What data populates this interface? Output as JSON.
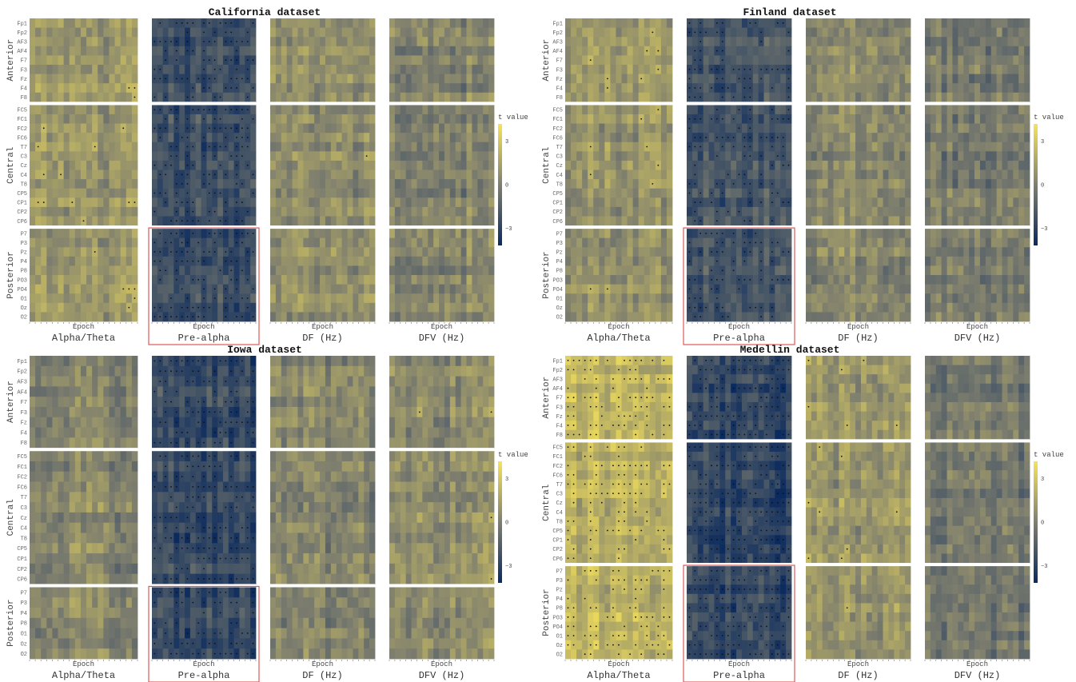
{
  "chart_data": [
    {
      "type": "heatmap",
      "title": "California dataset",
      "panels": [
        "Alpha/Theta",
        "Pre-alpha",
        "DF (Hz)",
        "DFV (Hz)"
      ],
      "panel_xlabel": "Epoch",
      "highlighted_panel": "Pre-alpha",
      "region_groups": [
        {
          "name": "Anterior",
          "channels": [
            "Fp1",
            "Fp2",
            "AF3",
            "AF4",
            "F7",
            "F3",
            "Fz",
            "F4",
            "F8"
          ]
        },
        {
          "name": "Central",
          "channels": [
            "FC5",
            "FC1",
            "FC2",
            "FC6",
            "T7",
            "C3",
            "Cz",
            "C4",
            "T8",
            "CP5",
            "CP1",
            "CP2",
            "CP6"
          ]
        },
        {
          "name": "Posterior",
          "channels": [
            "P7",
            "P3",
            "Pz",
            "P4",
            "P8",
            "PO3",
            "PO4",
            "O1",
            "Oz",
            "O2"
          ]
        }
      ],
      "panel_mean_t": [
        0.9,
        -2.4,
        0.4,
        0.2
      ],
      "legend": {
        "title": "t value",
        "ticks": [
          3,
          0,
          -3
        ]
      }
    },
    {
      "type": "heatmap",
      "title": "Finland dataset",
      "panels": [
        "Alpha/Theta",
        "Pre-alpha",
        "DF (Hz)",
        "DFV (Hz)"
      ],
      "panel_xlabel": "Epoch",
      "highlighted_panel": "Pre-alpha",
      "region_groups": [
        {
          "name": "Anterior",
          "channels": [
            "Fp1",
            "Fp2",
            "AF3",
            "AF4",
            "F7",
            "F3",
            "Fz",
            "F4",
            "F8"
          ]
        },
        {
          "name": "Central",
          "channels": [
            "FC5",
            "FC1",
            "FC2",
            "FC6",
            "T7",
            "C3",
            "Cz",
            "C4",
            "T8",
            "CP5",
            "CP1",
            "CP2",
            "CP6"
          ]
        },
        {
          "name": "Posterior",
          "channels": [
            "P7",
            "P3",
            "Pz",
            "P4",
            "P8",
            "PO3",
            "PO4",
            "O1",
            "Oz",
            "O2"
          ]
        }
      ],
      "panel_mean_t": [
        0.9,
        -2.0,
        0.4,
        -0.2
      ],
      "legend": {
        "title": "t value",
        "ticks": [
          3,
          0,
          -3
        ]
      }
    },
    {
      "type": "heatmap",
      "title": "Iowa dataset",
      "panels": [
        "Alpha/Theta",
        "Pre-alpha",
        "DF (Hz)",
        "DFV (Hz)"
      ],
      "panel_xlabel": "Epoch",
      "highlighted_panel": "Pre-alpha",
      "region_groups": [
        {
          "name": "Anterior",
          "channels": [
            "Fp1",
            "Fp2",
            "AF3",
            "AF4",
            "F7",
            "F3",
            "Fz",
            "F4",
            "F8"
          ]
        },
        {
          "name": "Central",
          "channels": [
            "FC5",
            "FC1",
            "FC2",
            "FC6",
            "T7",
            "C3",
            "Cz",
            "C4",
            "T8",
            "CP5",
            "CP1",
            "CP2",
            "CP6"
          ]
        },
        {
          "name": "Posterior",
          "channels": [
            "P7",
            "P3",
            "P4",
            "P8",
            "O1",
            "Oz",
            "O2"
          ]
        }
      ],
      "panel_mean_t": [
        0.3,
        -2.6,
        0.3,
        0.6
      ],
      "legend": {
        "title": "t value",
        "ticks": [
          3,
          0,
          -3
        ]
      }
    },
    {
      "type": "heatmap",
      "title": "Medellin dataset",
      "panels": [
        "Alpha/Theta",
        "Pre-alpha",
        "DF (Hz)",
        "DFV (Hz)"
      ],
      "panel_xlabel": "Epoch",
      "highlighted_panel": "Pre-alpha",
      "region_groups": [
        {
          "name": "Anterior",
          "channels": [
            "Fp1",
            "Fp2",
            "AF3",
            "AF4",
            "F7",
            "F3",
            "Fz",
            "F4",
            "F8"
          ]
        },
        {
          "name": "Central",
          "channels": [
            "FC5",
            "FC1",
            "FC2",
            "FC6",
            "T7",
            "C3",
            "Cz",
            "C4",
            "T8",
            "CP5",
            "CP1",
            "CP2",
            "CP6"
          ]
        },
        {
          "name": "Posterior",
          "channels": [
            "P7",
            "P3",
            "Pz",
            "P4",
            "P8",
            "PO3",
            "PO4",
            "O1",
            "Oz",
            "O2"
          ]
        }
      ],
      "panel_mean_t": [
        2.2,
        -2.8,
        0.9,
        -0.4
      ],
      "legend": {
        "title": "t value",
        "ticks": [
          3,
          0,
          -3
        ]
      }
    }
  ],
  "colors": {
    "low": "#0b2a5e",
    "mid": "#7f7f6e",
    "high": "#f7e35a",
    "divider": "#ffffff",
    "highlight": "#e05858"
  }
}
